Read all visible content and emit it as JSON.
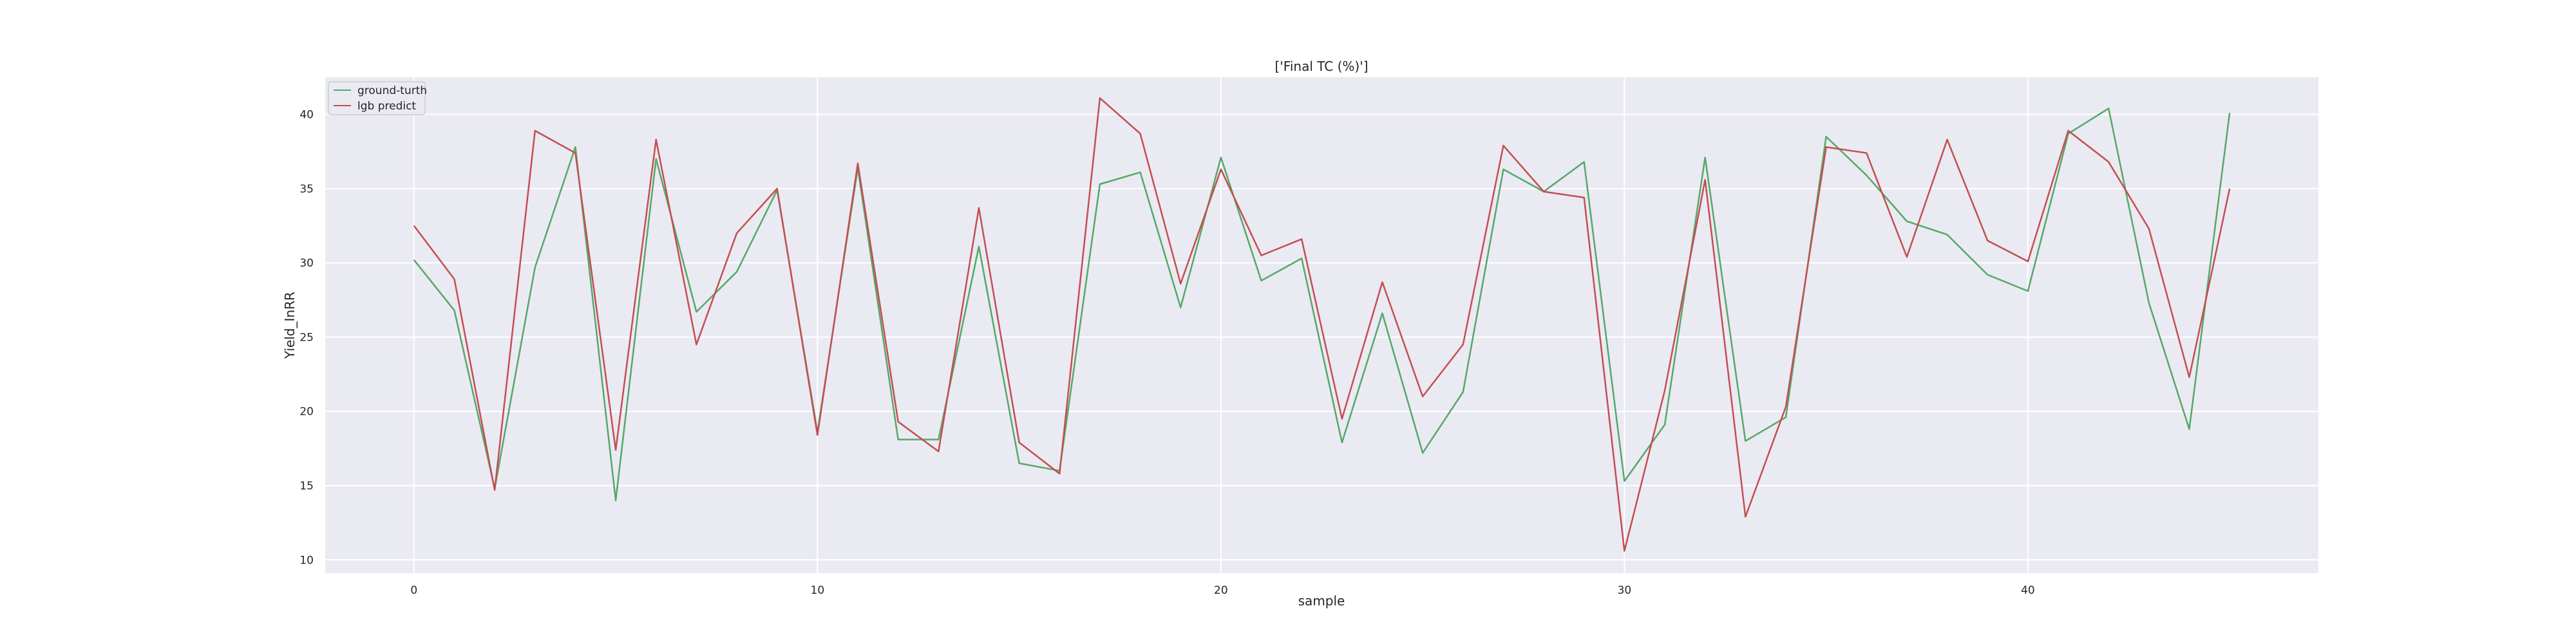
{
  "chart_data": {
    "type": "line",
    "title": "['Final TC (%)']",
    "xlabel": "sample",
    "ylabel": "Yield_InRR",
    "xlim": [
      -2.2,
      47.2
    ],
    "ylim": [
      9.1,
      42.5
    ],
    "xticks": [
      0,
      10,
      20,
      30,
      40
    ],
    "yticks": [
      10,
      15,
      20,
      25,
      30,
      35,
      40
    ],
    "grid": true,
    "legend_position": "top-left",
    "x": [
      0,
      1,
      2,
      3,
      4,
      5,
      6,
      7,
      8,
      9,
      10,
      11,
      12,
      13,
      14,
      15,
      16,
      17,
      18,
      19,
      20,
      21,
      22,
      23,
      24,
      25,
      26,
      27,
      28,
      29,
      30,
      31,
      32,
      33,
      34,
      35,
      36,
      37,
      38,
      39,
      40,
      41,
      42,
      43,
      44,
      45
    ],
    "series": [
      {
        "name": "ground-turth",
        "color": "#55a868",
        "values": [
          30.2,
          26.8,
          14.8,
          29.7,
          37.8,
          14.0,
          37.0,
          26.7,
          29.4,
          34.9,
          18.6,
          36.4,
          18.1,
          18.1,
          31.1,
          16.5,
          16.0,
          35.3,
          36.1,
          27.0,
          37.1,
          28.8,
          30.3,
          17.9,
          26.6,
          17.2,
          21.3,
          36.3,
          34.8,
          36.8,
          15.3,
          19.1,
          37.1,
          18.0,
          19.6,
          38.5,
          35.9,
          32.8,
          31.9,
          29.2,
          28.1,
          38.7,
          40.4,
          27.3,
          18.8,
          40.1
        ]
      },
      {
        "name": "lgb predict",
        "color": "#c44e52",
        "values": [
          32.5,
          28.9,
          14.7,
          38.9,
          37.4,
          17.4,
          38.3,
          24.5,
          32.0,
          35.0,
          18.4,
          36.7,
          19.3,
          17.3,
          33.7,
          17.9,
          15.8,
          41.1,
          38.7,
          28.6,
          36.3,
          30.5,
          31.6,
          19.5,
          28.7,
          21.0,
          24.5,
          37.9,
          34.8,
          34.4,
          10.6,
          21.4,
          35.6,
          12.9,
          20.3,
          37.8,
          37.4,
          30.4,
          38.3,
          31.5,
          30.1,
          38.9,
          36.8,
          32.3,
          22.3,
          35.0
        ]
      }
    ]
  }
}
